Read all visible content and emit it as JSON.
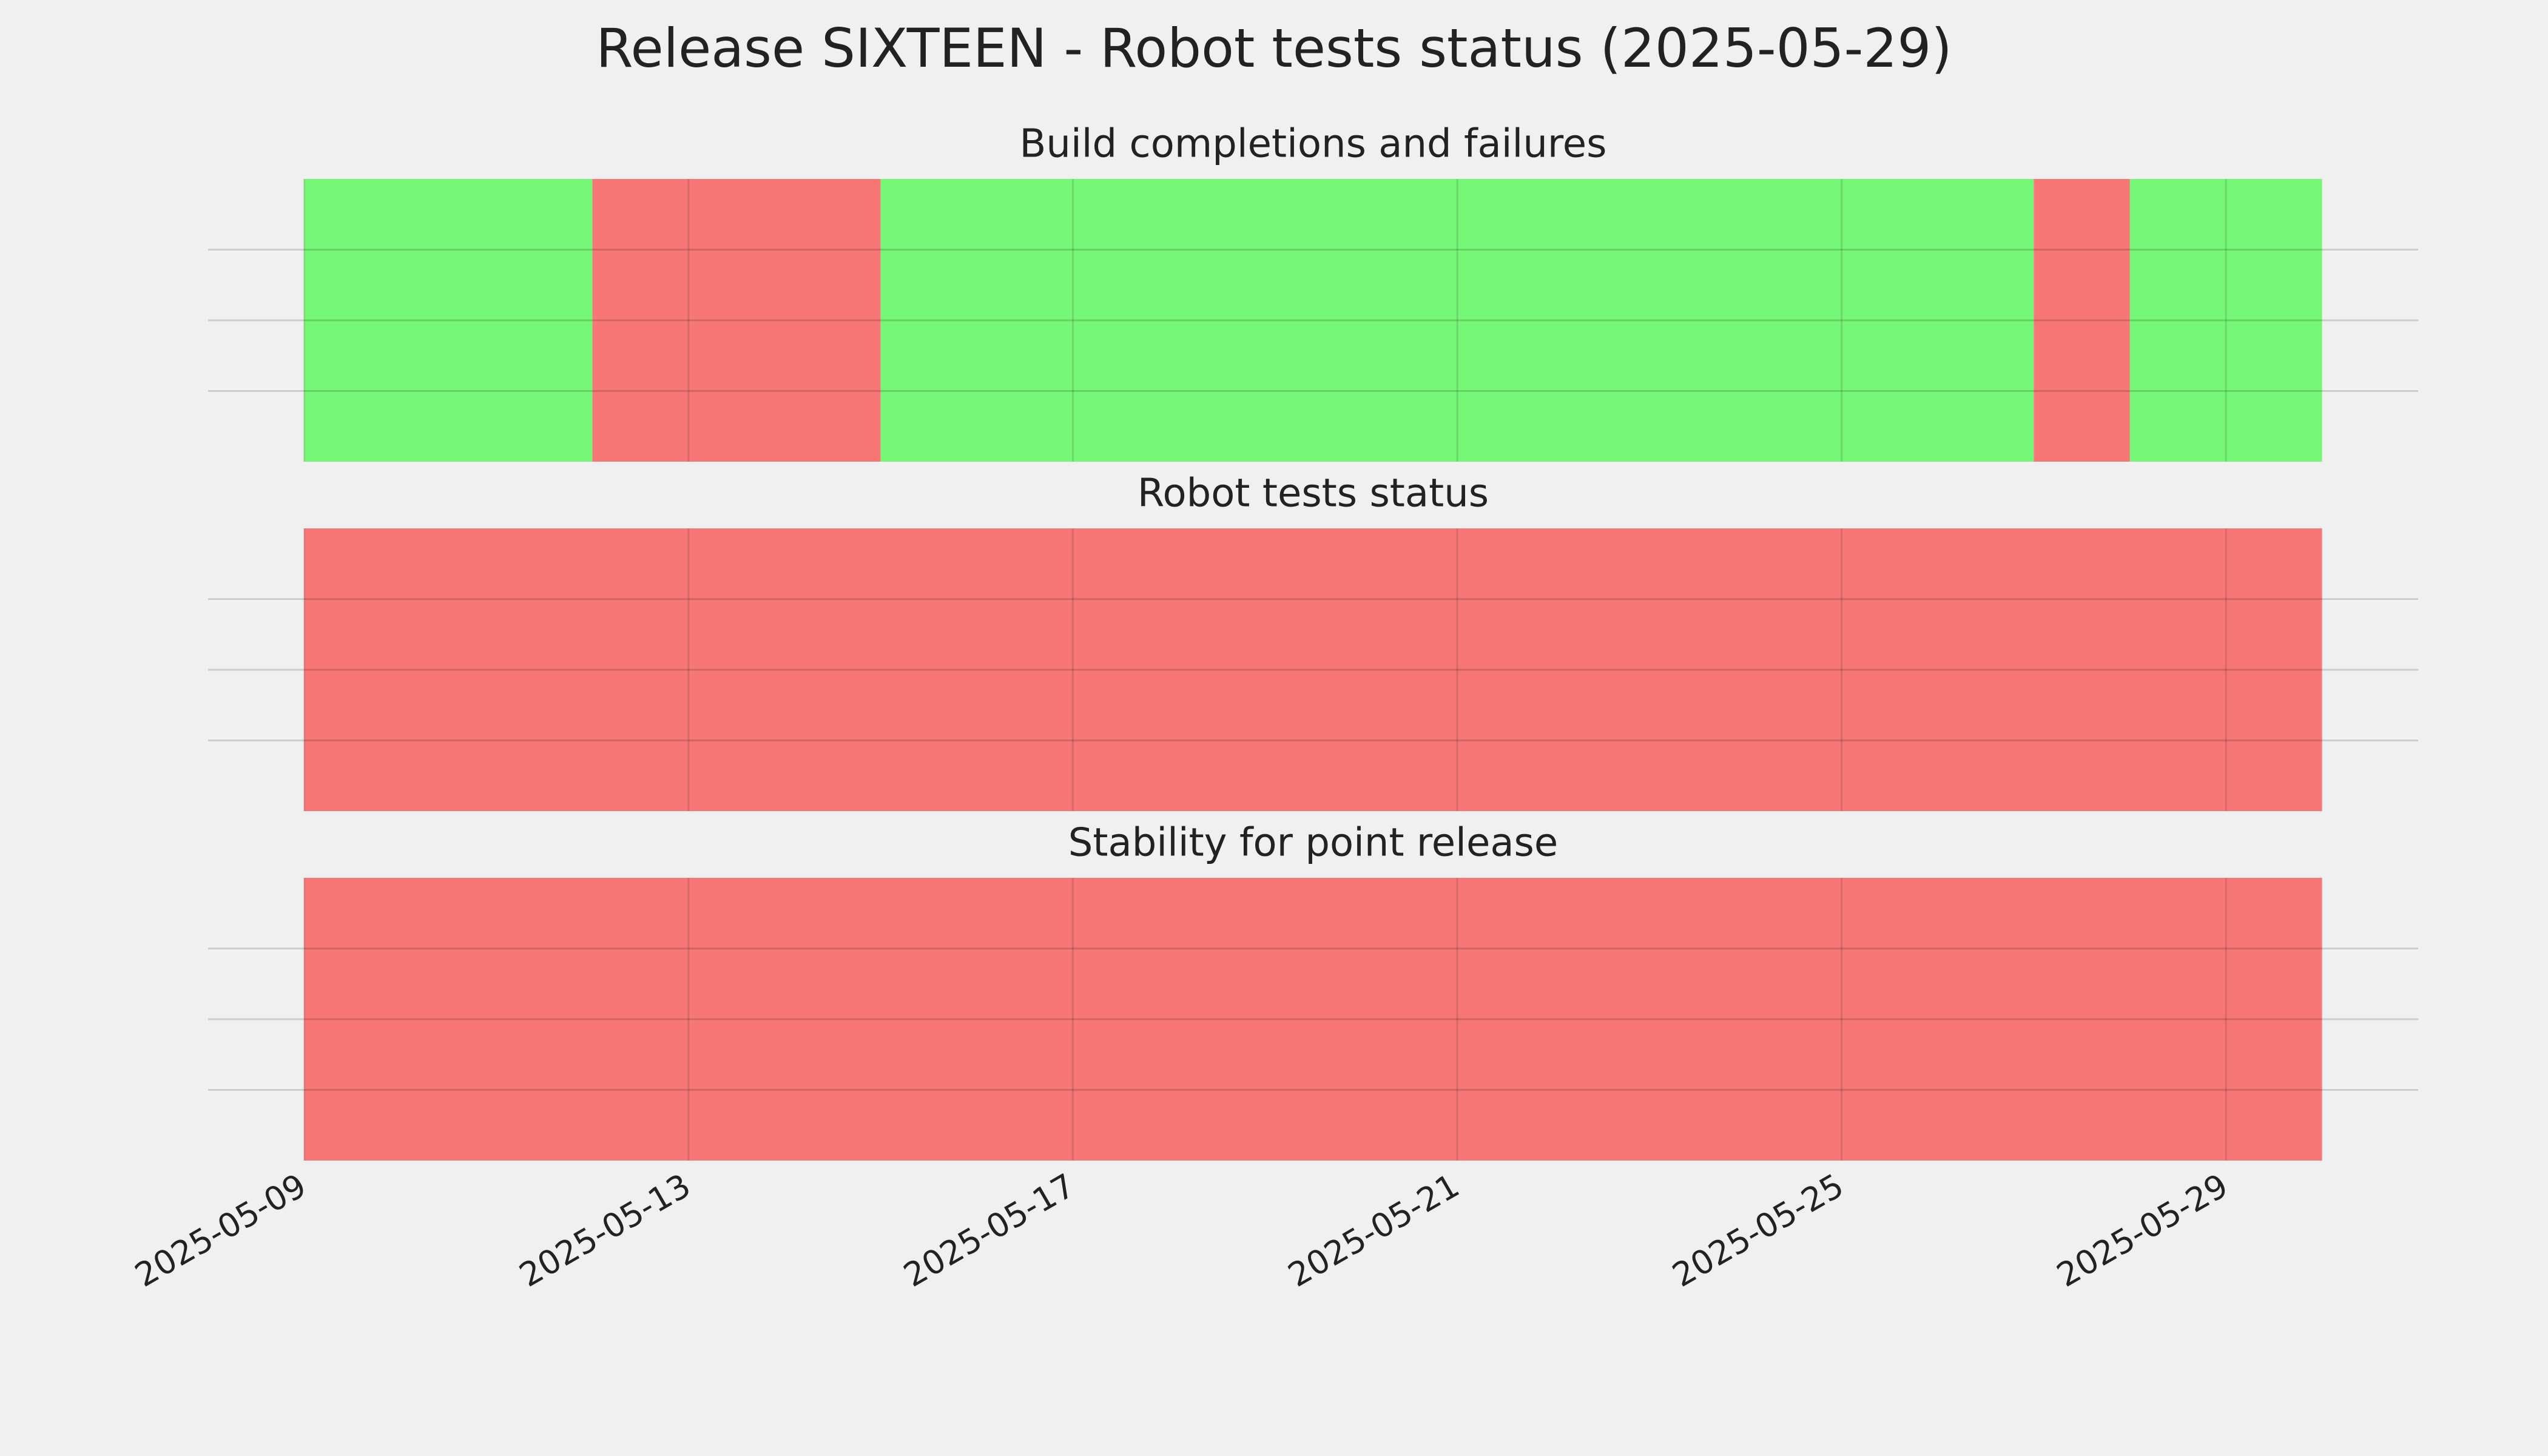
{
  "title": "Release SIXTEEN - Robot tests status (2025-05-29)",
  "chart_data": [
    {
      "type": "timeline",
      "title": "Build completions and failures",
      "segments": [
        {
          "start": "2025-05-09",
          "end": "2025-05-12",
          "color": "#77f777"
        },
        {
          "start": "2025-05-12",
          "end": "2025-05-15",
          "color": "#f77777"
        },
        {
          "start": "2025-05-15",
          "end": "2025-05-27",
          "color": "#77f777"
        },
        {
          "start": "2025-05-27",
          "end": "2025-05-28",
          "color": "#f77777"
        },
        {
          "start": "2025-05-28",
          "end": "2025-05-30",
          "color": "#77f777"
        }
      ],
      "xlim": [
        "2025-05-08",
        "2025-05-31"
      ],
      "xticks": [
        "2025-05-09",
        "2025-05-13",
        "2025-05-17",
        "2025-05-21",
        "2025-05-25",
        "2025-05-29"
      ],
      "ylim": [
        0,
        1
      ],
      "yticks": [
        0.25,
        0.5,
        0.75
      ],
      "grid": true
    },
    {
      "type": "timeline",
      "title": "Robot tests status",
      "segments": [
        {
          "start": "2025-05-09",
          "end": "2025-05-30",
          "color": "#f77777"
        }
      ],
      "xlim": [
        "2025-05-08",
        "2025-05-31"
      ],
      "xticks": [
        "2025-05-09",
        "2025-05-13",
        "2025-05-17",
        "2025-05-21",
        "2025-05-25",
        "2025-05-29"
      ],
      "ylim": [
        0,
        1
      ],
      "yticks": [
        0.25,
        0.5,
        0.75
      ],
      "grid": true
    },
    {
      "type": "timeline",
      "title": "Stability for point release",
      "segments": [
        {
          "start": "2025-05-09",
          "end": "2025-05-30",
          "color": "#f77777"
        }
      ],
      "xlim": [
        "2025-05-08",
        "2025-05-31"
      ],
      "xticks": [
        "2025-05-09",
        "2025-05-13",
        "2025-05-17",
        "2025-05-21",
        "2025-05-25",
        "2025-05-29"
      ],
      "ylim": [
        0,
        1
      ],
      "yticks": [
        0.25,
        0.5,
        0.75
      ],
      "grid": true
    }
  ]
}
